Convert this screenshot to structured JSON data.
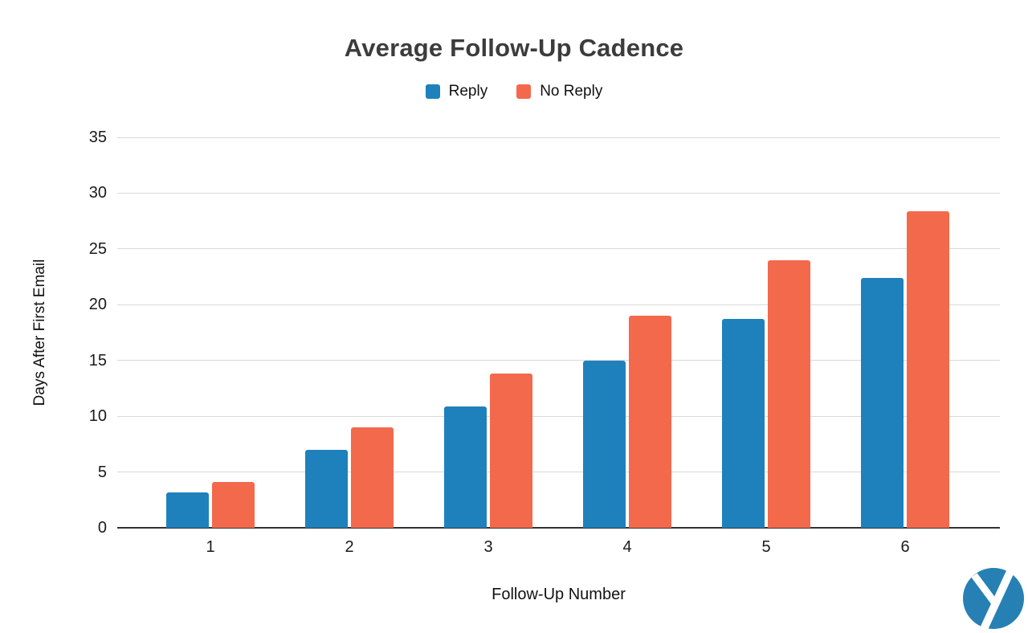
{
  "chart_data": {
    "type": "bar",
    "title": "Average Follow-Up Cadence",
    "xlabel": "Follow-Up Number",
    "ylabel": "Days After First Email",
    "categories": [
      "1",
      "2",
      "3",
      "4",
      "5",
      "6"
    ],
    "series": [
      {
        "name": "Reply",
        "color": "#1E81BC",
        "values": [
          3.2,
          7.0,
          10.9,
          15.0,
          18.7,
          22.4
        ]
      },
      {
        "name": "No Reply",
        "color": "#F3694C",
        "values": [
          4.1,
          9.0,
          13.8,
          19.0,
          24.0,
          28.4
        ]
      }
    ],
    "ylim": [
      0,
      35
    ],
    "ytick_step": 5,
    "grid": true,
    "legend_position": "top-center",
    "gridline_color": "#d9d9d9",
    "axis_line_color": "#333333"
  },
  "branding": {
    "logo": "yesware-logo",
    "circle_color": "#2680B4"
  }
}
